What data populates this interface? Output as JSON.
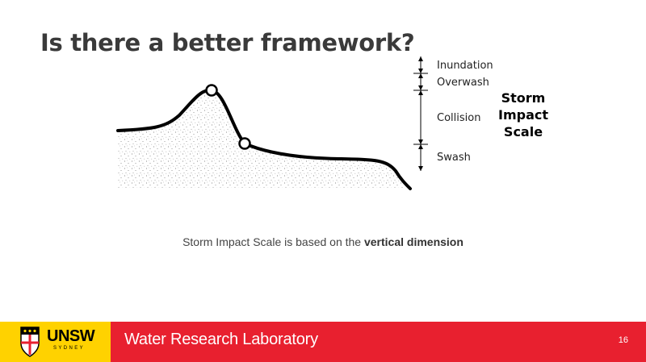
{
  "slide": {
    "title": "Is there a better framework?",
    "caption_prefix": "Storm Impact Scale is based on the ",
    "caption_emphasis": "vertical dimension",
    "page_number": "16"
  },
  "diagram": {
    "levels": [
      "Inundation",
      "Overwash",
      "Collision",
      "Swash"
    ],
    "scale_title": [
      "Storm",
      "Impact",
      "Scale"
    ]
  },
  "footer": {
    "logo_text": "UNSW",
    "logo_subtext": "SYDNEY",
    "lab_name": "Water Research Laboratory"
  },
  "colors": {
    "footer_red": "#e8202f",
    "logo_yellow": "#ffd200",
    "title_gray": "#3a3a3a"
  }
}
